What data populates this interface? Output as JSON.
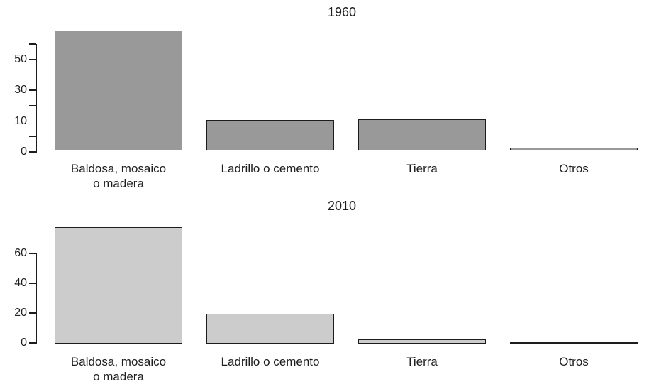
{
  "chart_data": [
    {
      "type": "bar",
      "title": "1960",
      "categories": [
        "Baldosa, mosaico\no madera",
        "Ladrillo o cemento",
        "Tierra",
        "Otros"
      ],
      "values": [
        68,
        10,
        10.5,
        1
      ],
      "ytick_values": [
        0,
        5,
        10,
        20,
        30,
        40,
        50,
        60
      ],
      "ytick_labels": [
        "0",
        "",
        "10",
        "",
        "30",
        "",
        "50",
        ""
      ],
      "ylim": [
        0,
        68
      ],
      "xlabel": "",
      "ylabel": "",
      "grid": false,
      "legend": false,
      "bar_color": "#999999",
      "bar_border_color": "#1c1c1c"
    },
    {
      "type": "bar",
      "title": "2010",
      "categories": [
        "Baldosa, mosaico\no madera",
        "Ladrillo o cemento",
        "Tierra",
        "Otros"
      ],
      "values": [
        78,
        20,
        3,
        0.2
      ],
      "ytick_values": [
        0,
        20,
        40,
        60
      ],
      "ytick_labels": [
        "0",
        "20",
        "40",
        "60"
      ],
      "ylim": [
        0,
        78
      ],
      "xlabel": "",
      "ylabel": "",
      "grid": false,
      "legend": false,
      "bar_color": "#cccccc",
      "bar_border_color": "#1c1c1c"
    }
  ]
}
